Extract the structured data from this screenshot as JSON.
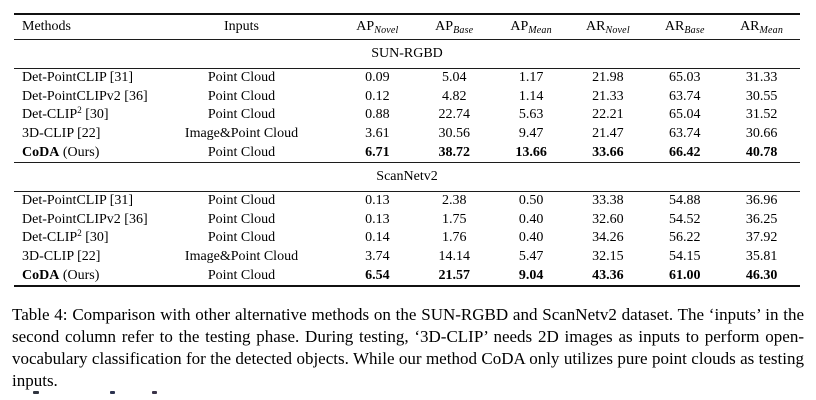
{
  "table": {
    "header": {
      "methods": "Methods",
      "inputs": "Inputs",
      "metrics": [
        {
          "base": "AP",
          "sub": "Novel"
        },
        {
          "base": "AP",
          "sub": "Base"
        },
        {
          "base": "AP",
          "sub": "Mean"
        },
        {
          "base": "AR",
          "sub": "Novel"
        },
        {
          "base": "AR",
          "sub": "Base"
        },
        {
          "base": "AR",
          "sub": "Mean"
        }
      ]
    },
    "sections": [
      {
        "title": "SUN-RGBD",
        "rows": [
          {
            "name": "Det-PointCLIP",
            "sup": "",
            "suffix": "[31]",
            "inputs": "Point Cloud",
            "values": [
              "0.09",
              "5.04",
              "1.17",
              "21.98",
              "65.03",
              "31.33"
            ],
            "highlight": false
          },
          {
            "name": "Det-PointCLIPv2",
            "sup": "",
            "suffix": "[36]",
            "inputs": "Point Cloud",
            "values": [
              "0.12",
              "4.82",
              "1.14",
              "21.33",
              "63.74",
              "30.55"
            ],
            "highlight": false
          },
          {
            "name": "Det-CLIP",
            "sup": "2",
            "suffix": "[30]",
            "inputs": "Point Cloud",
            "values": [
              "0.88",
              "22.74",
              "5.63",
              "22.21",
              "65.04",
              "31.52"
            ],
            "highlight": false
          },
          {
            "name": "3D-CLIP",
            "sup": "",
            "suffix": "[22]",
            "inputs": "Image&Point Cloud",
            "values": [
              "3.61",
              "30.56",
              "9.47",
              "21.47",
              "63.74",
              "30.66"
            ],
            "highlight": false
          },
          {
            "name": "CoDA",
            "sup": "",
            "suffix": "(Ours)",
            "inputs": "Point Cloud",
            "values": [
              "6.71",
              "38.72",
              "13.66",
              "33.66",
              "66.42",
              "40.78"
            ],
            "highlight": true
          }
        ]
      },
      {
        "title": "ScanNetv2",
        "rows": [
          {
            "name": "Det-PointCLIP",
            "sup": "",
            "suffix": "[31]",
            "inputs": "Point Cloud",
            "values": [
              "0.13",
              "2.38",
              "0.50",
              "33.38",
              "54.88",
              "36.96"
            ],
            "highlight": false
          },
          {
            "name": "Det-PointCLIPv2",
            "sup": "",
            "suffix": "[36]",
            "inputs": "Point Cloud",
            "values": [
              "0.13",
              "1.75",
              "0.40",
              "32.60",
              "54.52",
              "36.25"
            ],
            "highlight": false
          },
          {
            "name": "Det-CLIP",
            "sup": "2",
            "suffix": "[30]",
            "inputs": "Point Cloud",
            "values": [
              "0.14",
              "1.76",
              "0.40",
              "34.26",
              "56.22",
              "37.92"
            ],
            "highlight": false
          },
          {
            "name": "3D-CLIP",
            "sup": "",
            "suffix": "[22]",
            "inputs": "Image&Point Cloud",
            "values": [
              "3.74",
              "14.14",
              "5.47",
              "32.15",
              "54.15",
              "35.81"
            ],
            "highlight": false
          },
          {
            "name": "CoDA",
            "sup": "",
            "suffix": "(Ours)",
            "inputs": "Point Cloud",
            "values": [
              "6.54",
              "21.57",
              "9.04",
              "43.36",
              "61.00",
              "46.30"
            ],
            "highlight": true
          }
        ]
      }
    ]
  },
  "caption": {
    "text": "Table 4: Comparison with other alternative methods on the SUN-RGBD and ScanNetv2 dataset. The ‘inputs’ in the second column refer to the testing phase. During testing, ‘3D-CLIP’ needs 2D images as inputs to perform open-vocabulary classification for the detected objects. While our method CoDA only utilizes pure point clouds as testing inputs."
  }
}
